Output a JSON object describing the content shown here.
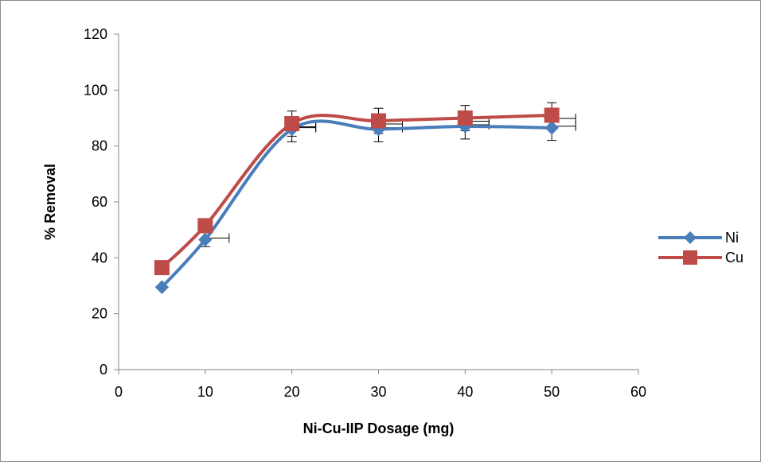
{
  "chart_data": {
    "type": "line",
    "title": "",
    "xlabel": "Ni-Cu-IIP Dosage (mg)",
    "ylabel": "% Removal",
    "xlim": [
      0,
      60
    ],
    "ylim": [
      0,
      120
    ],
    "xticks": [
      0,
      10,
      20,
      30,
      40,
      50,
      60
    ],
    "yticks": [
      0,
      20,
      40,
      60,
      80,
      100,
      120
    ],
    "grid": false,
    "smooth": true,
    "legend_position": "right",
    "x": [
      5,
      10,
      20,
      30,
      40,
      50
    ],
    "series": [
      {
        "name": "Ni",
        "marker": "diamond",
        "color": "#4a7ebb",
        "values": [
          29.5,
          46.5,
          86,
          86,
          87,
          86.5
        ],
        "error": [
          null,
          2.5,
          4.5,
          4.5,
          4.5,
          4.5
        ]
      },
      {
        "name": "Cu",
        "marker": "square",
        "color": "#be4b48",
        "values": [
          36.5,
          51.5,
          88,
          89,
          90,
          91
        ],
        "error": [
          null,
          null,
          4.5,
          4.5,
          4.5,
          4.5
        ]
      }
    ]
  }
}
